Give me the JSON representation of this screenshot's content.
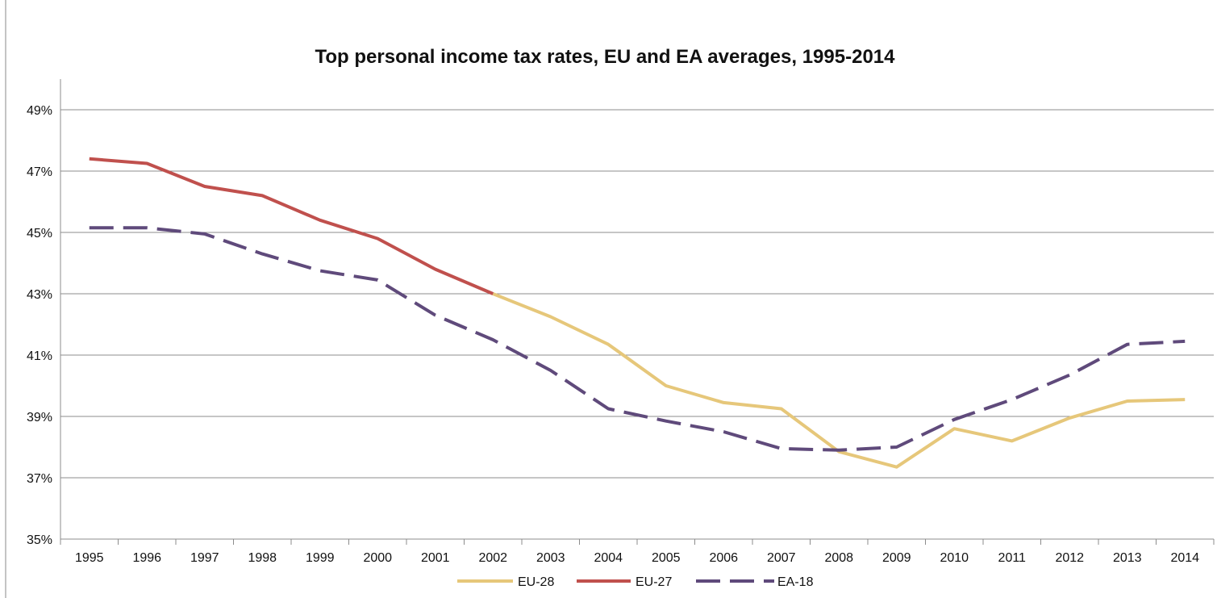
{
  "chart_data": {
    "type": "line",
    "title": "Top personal income tax rates, EU and EA averages, 1995-2014",
    "xlabel": "",
    "ylabel": "",
    "categories": [
      "1995",
      "1996",
      "1997",
      "1998",
      "1999",
      "2000",
      "2001",
      "2002",
      "2003",
      "2004",
      "2005",
      "2006",
      "2007",
      "2008",
      "2009",
      "2010",
      "2011",
      "2012",
      "2013",
      "2014"
    ],
    "ylim": [
      35,
      50
    ],
    "yticks": [
      35,
      37,
      39,
      41,
      43,
      45,
      47,
      49
    ],
    "ytick_labels": [
      "35%",
      "37%",
      "39%",
      "41%",
      "43%",
      "45%",
      "47%",
      "49%"
    ],
    "grid": true,
    "legend_position": "bottom",
    "series": [
      {
        "name": "EU-28",
        "color": "#E6C77A",
        "dash": "solid",
        "values": [
          null,
          null,
          null,
          null,
          null,
          null,
          null,
          43.0,
          42.25,
          41.35,
          40.0,
          39.45,
          39.25,
          37.85,
          37.35,
          38.6,
          38.2,
          38.95,
          39.5,
          39.55
        ]
      },
      {
        "name": "EU-27",
        "color": "#C0504D",
        "dash": "solid",
        "values": [
          47.4,
          47.25,
          46.5,
          46.2,
          45.4,
          44.8,
          43.8,
          43.0,
          null,
          null,
          null,
          null,
          null,
          null,
          null,
          null,
          null,
          null,
          null,
          null
        ]
      },
      {
        "name": "EA-18",
        "color": "#5F4A7B",
        "dash": "dashed",
        "values": [
          45.15,
          45.15,
          44.95,
          44.3,
          43.75,
          43.45,
          42.3,
          41.5,
          40.5,
          39.25,
          38.85,
          38.5,
          37.95,
          37.9,
          38.0,
          38.9,
          39.55,
          40.35,
          41.35,
          41.45
        ]
      }
    ]
  }
}
